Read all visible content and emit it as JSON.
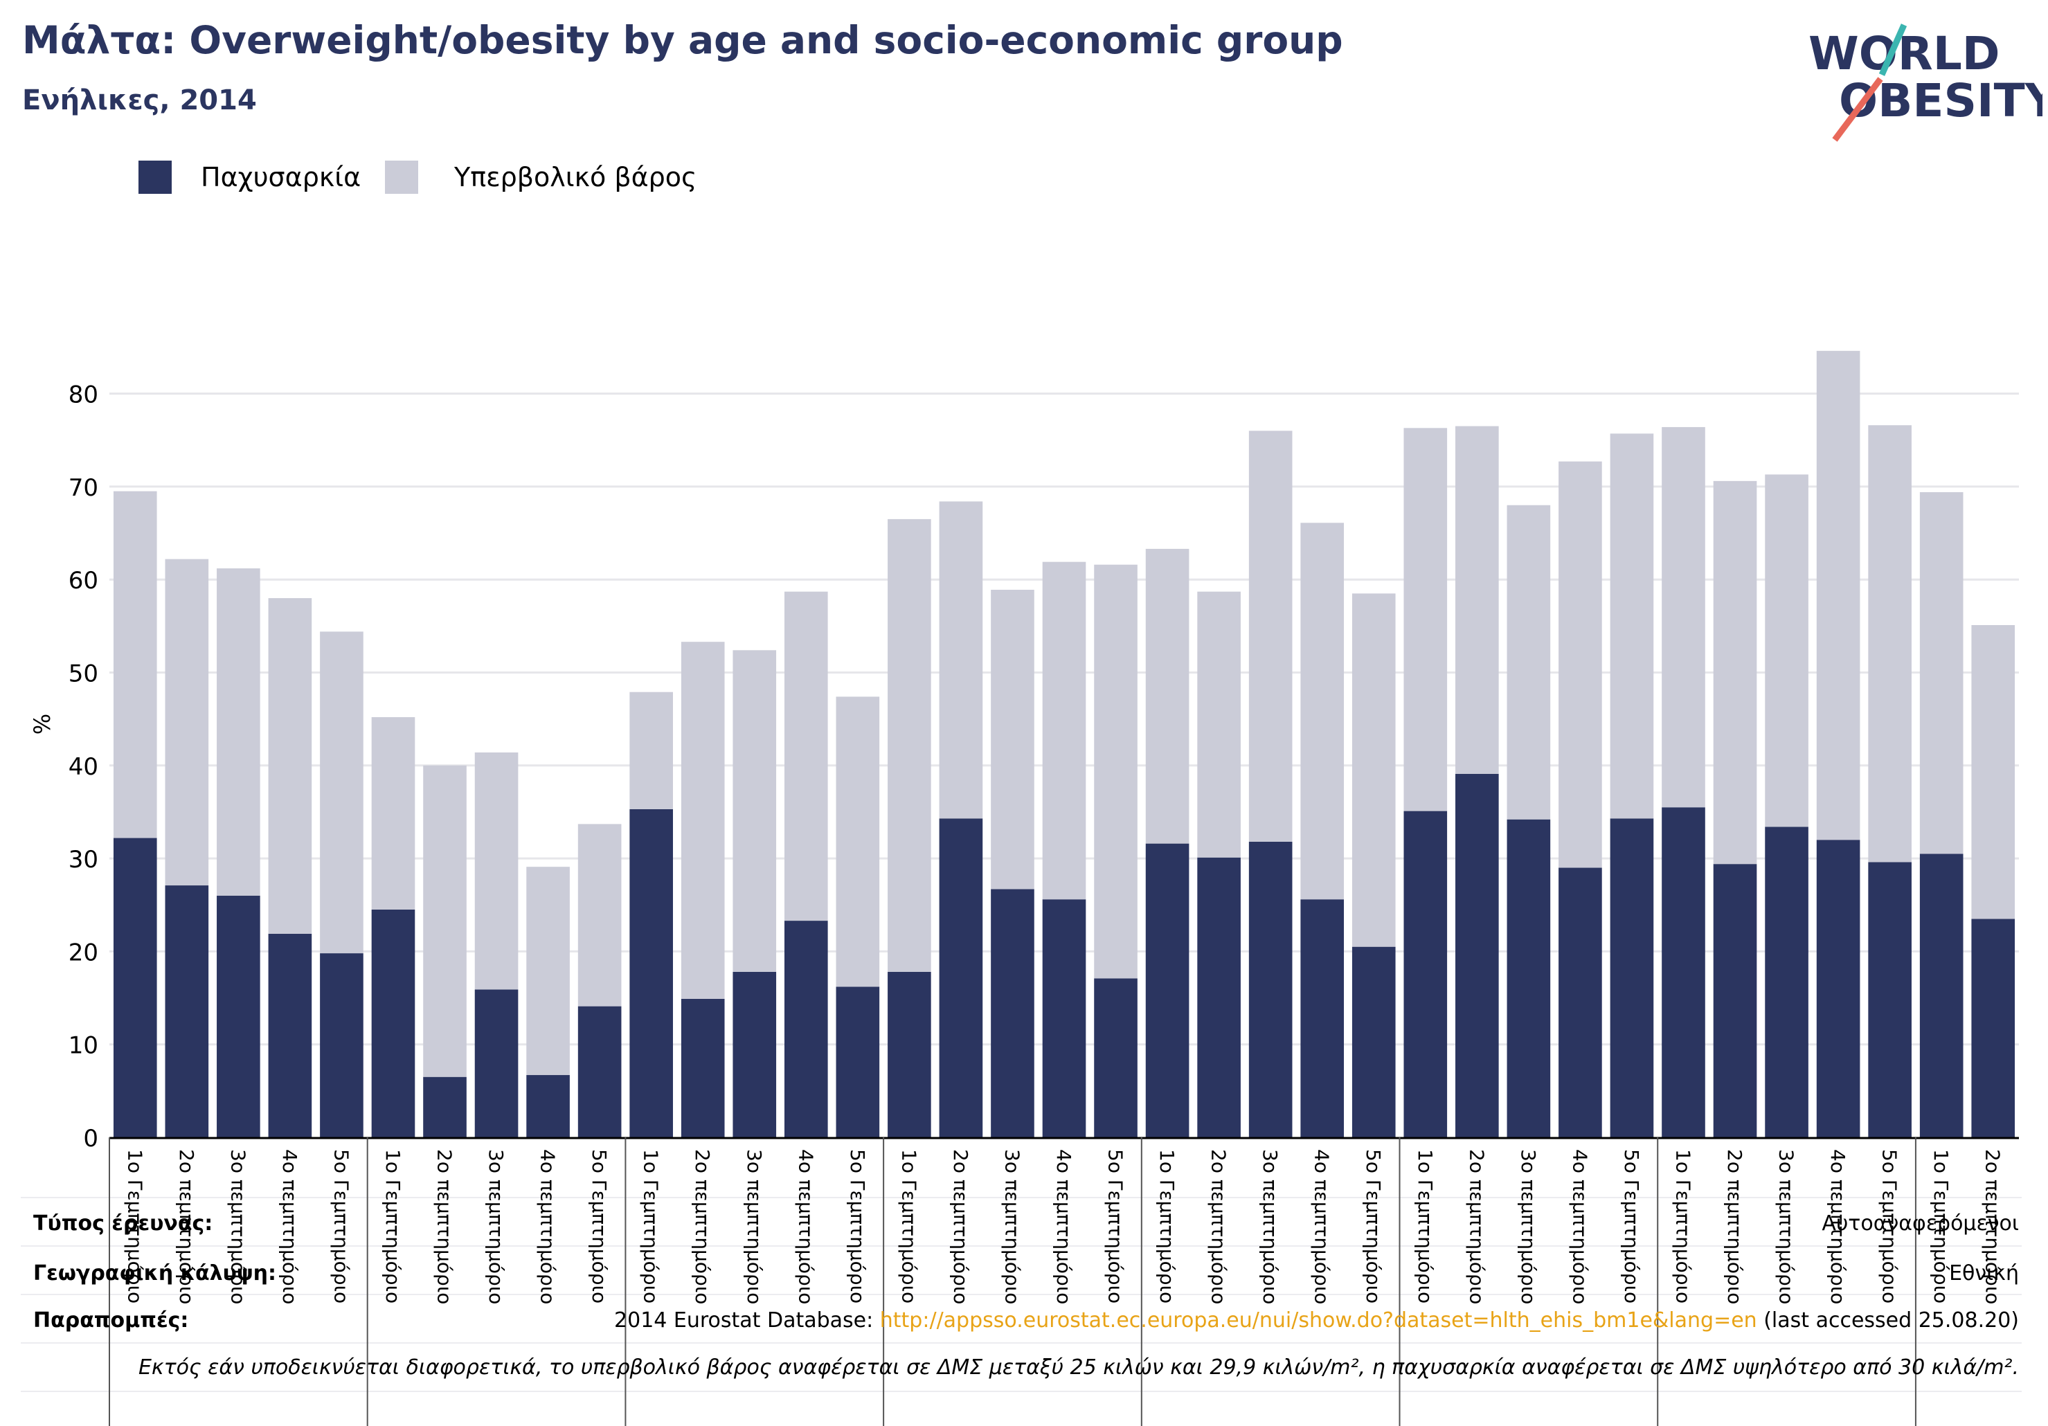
{
  "header": {
    "title": "Μάλτα: Overweight/obesity by age and socio-economic group",
    "subtitle": "Ενήλικες, 2014"
  },
  "logo": {
    "line1": "WORLD",
    "line2": "OBESITY"
  },
  "colors": {
    "obesity": "#2b3560",
    "overweight": "#cbccd8",
    "title": "#2b3560",
    "link": "#e8a317"
  },
  "footer": {
    "survey_type_label": "Τύπος έρευνας:",
    "survey_type_value": "Αυτοαναφερόμενοι",
    "coverage_label": "Γεωγραφική κάλυψη:",
    "coverage_value": "Εθνική",
    "references_label": "Παραπομπές:",
    "references_prefix": "2014 Eurostat Database: ",
    "references_url": "http://appsso.eurostat.ec.europa.eu/nui/show.do?dataset=hlth_ehis_bm1e&lang=en",
    "references_suffix": " (last accessed 25.08.20)",
    "note": "Εκτός εάν υποδεικνύεται διαφορετικά, το υπερβολικό βάρος αναφέρεται σε ΔΜΣ μεταξύ 25 κιλών και 29,9 κιλών/m², η παχυσαρκία αναφέρεται σε ΔΜΣ υψηλότερο από 30 κιλά/m²."
  },
  "chart_data": {
    "type": "bar",
    "stacked": true,
    "ylabel": "%",
    "ylim": [
      0,
      85
    ],
    "yticks": [
      0,
      10,
      20,
      30,
      40,
      50,
      60,
      70,
      80
    ],
    "grid": true,
    "legend_position": "top-left",
    "categories": [
      "1ο Γεμπτημόριο",
      "2ο πεμπτημόριο",
      "3ο πεμπτημόριο",
      "4ο πεμπτημόριο",
      "5ο Γεμπτημόριο",
      "1ο Γεμπτημόριο",
      "2ο πεμπτημόριο",
      "3ο πεμπτημόριο",
      "4ο πεμπτημόριο",
      "5ο Γεμπτημόριο",
      "1ο Γεμπτημόριο",
      "2ο πεμπτημόριο",
      "3ο πεμπτημόριο",
      "4ο πεμπτημόριο",
      "5ο Γεμπτημόριο",
      "1ο Γεμπτημόριο",
      "2ο πεμπτημόριο",
      "3ο πεμπτημόριο",
      "4ο πεμπτημόριο",
      "5ο Γεμπτημόριο",
      "1ο Γεμπτημόριο",
      "2ο πεμπτημόριο",
      "3ο πεμπτημόριο",
      "4ο πεμπτημόριο",
      "5ο Γεμπτημόριο",
      "1ο Γεμπτημόριο",
      "2ο πεμπτημόριο",
      "3ο πεμπτημόριο",
      "4ο πεμπτημόριο",
      "5ο Γεμπτημόριο",
      "1ο Γεμπτημόριο",
      "2ο πεμπτημόριο",
      "3ο πεμπτημόριο",
      "4ο πεμπτημόριο",
      "5ο Γεμπτημόριο",
      "1ο Γεμπτημόριο",
      "2ο πεμπτημόριο"
    ],
    "series": [
      {
        "name": "Παχυσαρκία",
        "values": [
          32.2,
          27.1,
          26.0,
          21.9,
          19.8,
          24.5,
          6.5,
          15.9,
          6.7,
          14.1,
          35.3,
          14.9,
          17.8,
          23.3,
          16.2,
          17.8,
          34.3,
          26.7,
          25.6,
          17.1,
          31.6,
          30.1,
          31.8,
          25.6,
          20.5,
          35.1,
          39.1,
          34.2,
          29.0,
          34.3,
          35.5,
          29.4,
          33.4,
          32.0,
          29.6,
          30.5,
          23.5
        ]
      },
      {
        "name": "Υπερβολικό βάρος",
        "values": [
          37.3,
          35.1,
          35.2,
          36.1,
          34.6,
          20.7,
          33.5,
          25.5,
          22.4,
          19.6,
          12.6,
          38.4,
          34.6,
          35.4,
          31.2,
          48.7,
          34.1,
          32.2,
          36.3,
          44.5,
          31.7,
          28.6,
          44.2,
          40.5,
          38.0,
          41.2,
          37.4,
          33.8,
          43.7,
          41.4,
          40.9,
          41.2,
          37.9,
          52.6,
          47.0,
          38.9,
          31.6
        ]
      }
    ]
  }
}
